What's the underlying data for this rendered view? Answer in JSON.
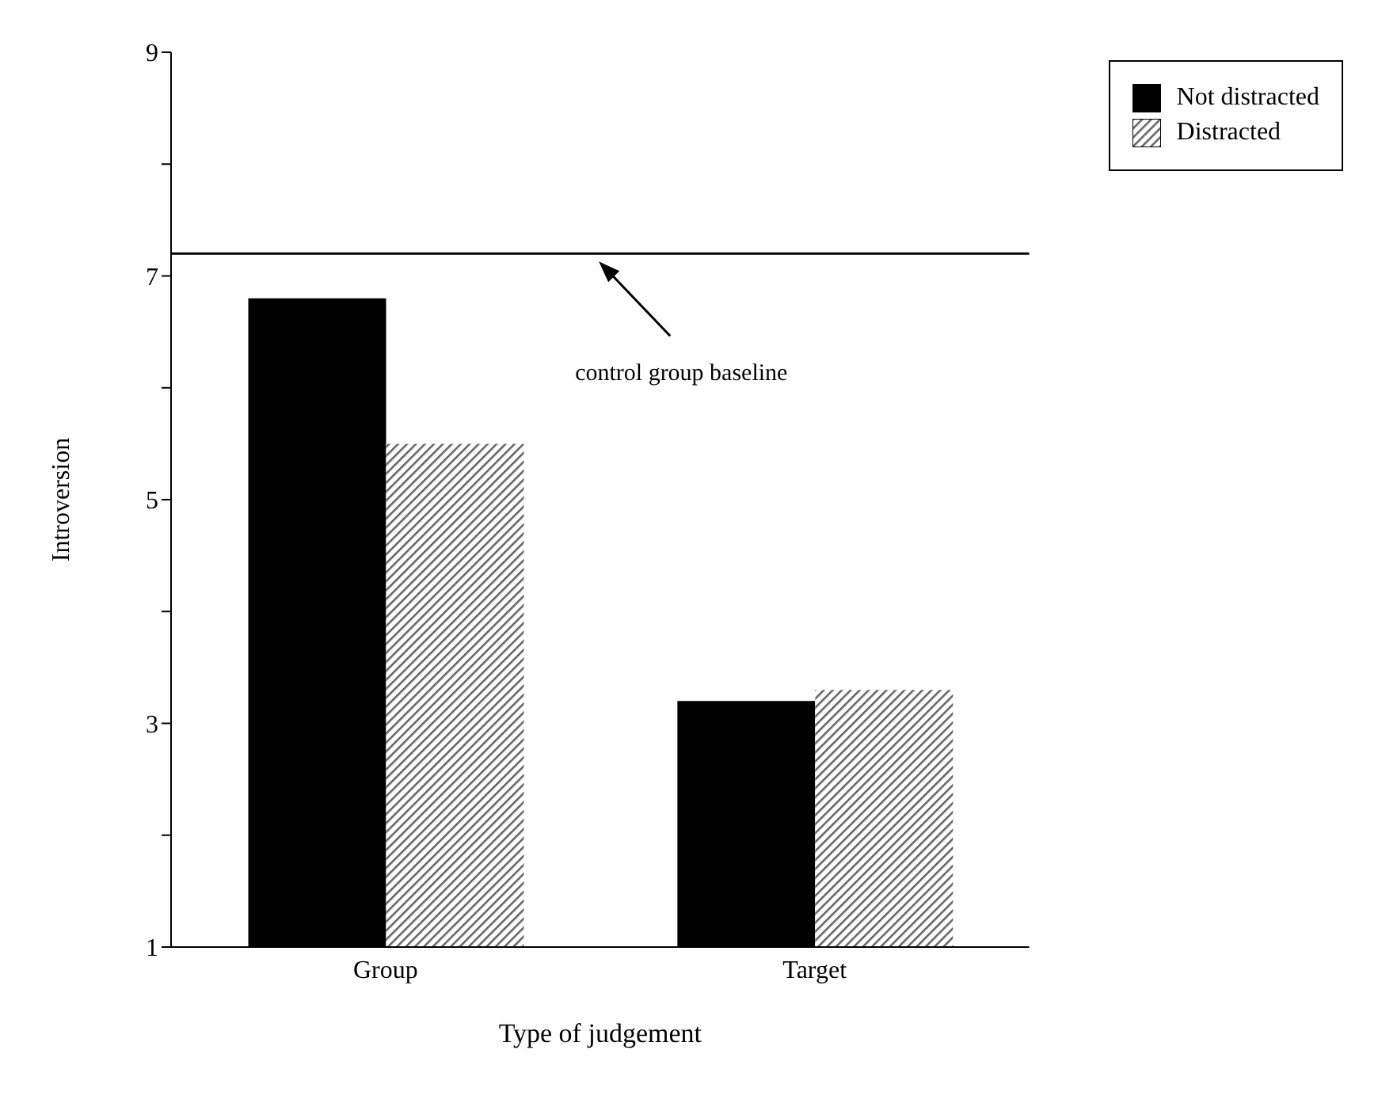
{
  "chart_data": {
    "type": "bar",
    "xlabel": "Type of judgement",
    "ylabel": "Introversion",
    "categories": [
      "Group",
      "Target"
    ],
    "series": [
      {
        "name": "Not distracted",
        "color": "#000000",
        "values": [
          6.8,
          3.2
        ]
      },
      {
        "name": "Distracted",
        "color": "#606060",
        "values": [
          5.5,
          3.3
        ]
      }
    ],
    "ylim": [
      1,
      9
    ],
    "yticks": [
      1,
      {
        "value": 2,
        "label": null
      },
      3,
      {
        "value": 4,
        "label": null
      },
      5,
      {
        "value": 6,
        "label": null
      },
      7,
      {
        "value": 8,
        "label": null
      },
      9
    ],
    "ref_lines": [
      {
        "axis": "y",
        "value": 7.2,
        "label": "control group baseline",
        "color": "#000000"
      }
    ],
    "grid": false,
    "legend": "top right"
  }
}
